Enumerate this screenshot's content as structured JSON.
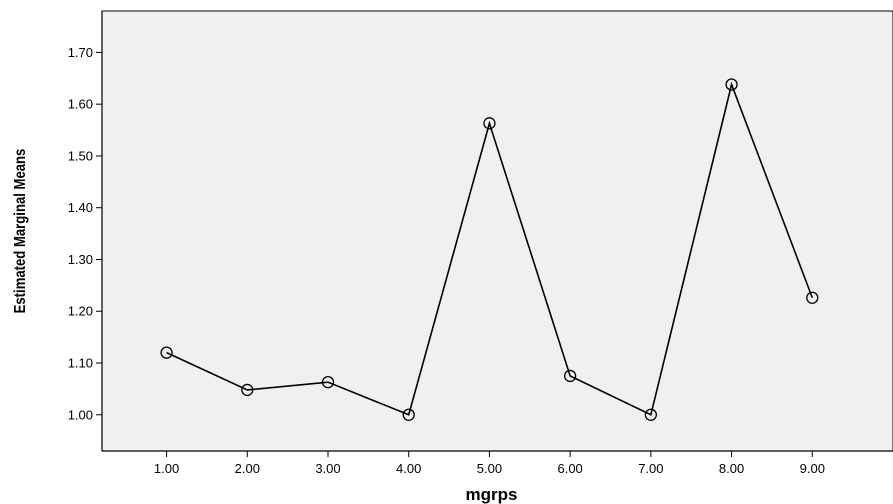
{
  "chart_data": {
    "type": "line",
    "title": "",
    "xlabel": "mgrps",
    "ylabel": "Estimated Marginal Means",
    "x": [
      "1.00",
      "2.00",
      "3.00",
      "4.00",
      "5.00",
      "6.00",
      "7.00",
      "8.00",
      "9.00"
    ],
    "series": [
      {
        "values": [
          1.12,
          1.048,
          1.063,
          1.0,
          1.563,
          1.075,
          1.0,
          1.638,
          1.226
        ]
      }
    ],
    "ylim": [
      0.93,
      1.78
    ],
    "yticks": [
      "1.00",
      "1.10",
      "1.20",
      "1.30",
      "1.40",
      "1.50",
      "1.60",
      "1.70"
    ],
    "xlim": [
      0.2,
      10.0
    ],
    "grid": false,
    "legend": "none",
    "colors": {
      "plot_background": "#f0f0f0",
      "line": "#000000",
      "axis": "#000000"
    }
  }
}
